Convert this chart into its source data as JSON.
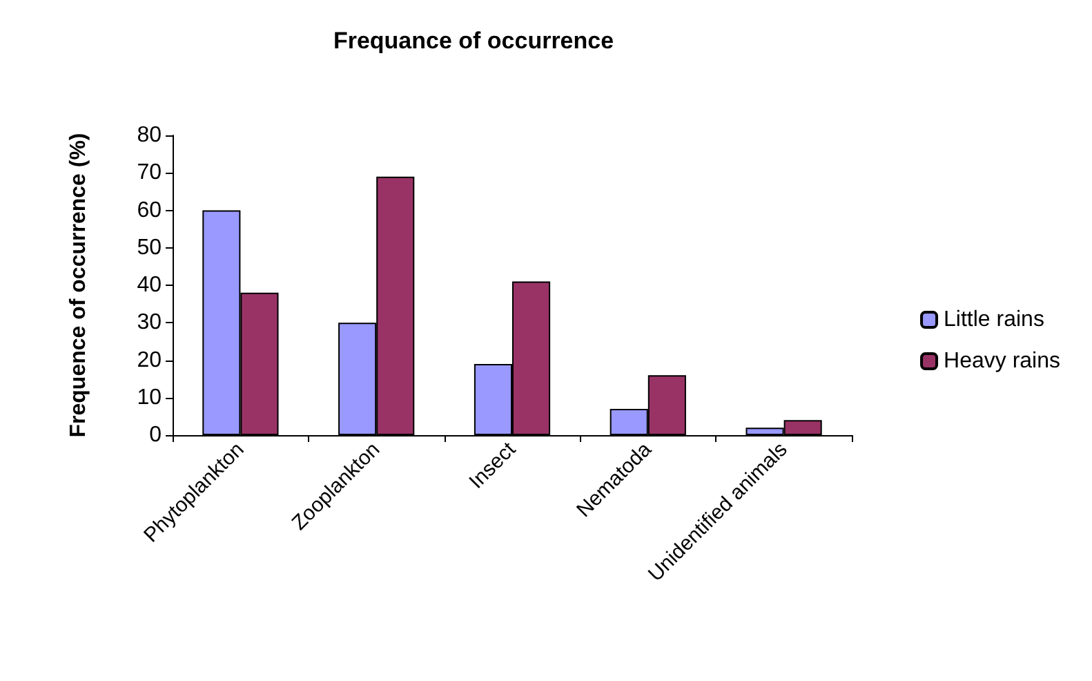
{
  "chart_data": {
    "type": "bar",
    "title": "Frequance of occurrence",
    "ylabel": "Frequence of occurrence (%)",
    "categories": [
      "Phytoplankton",
      "Zooplankton",
      "Insect",
      "Nematoda",
      "Unidentified animals"
    ],
    "series": [
      {
        "name": "Little rains",
        "color": "#9999ff",
        "values": [
          60,
          30,
          19,
          7,
          2
        ]
      },
      {
        "name": "Heavy rains",
        "color": "#993366",
        "values": [
          38,
          69,
          41,
          16,
          4
        ]
      }
    ],
    "ylim": [
      0,
      80
    ],
    "yticks": [
      0,
      10,
      20,
      30,
      40,
      50,
      60,
      70,
      80
    ],
    "grid": false,
    "legend": "right"
  }
}
